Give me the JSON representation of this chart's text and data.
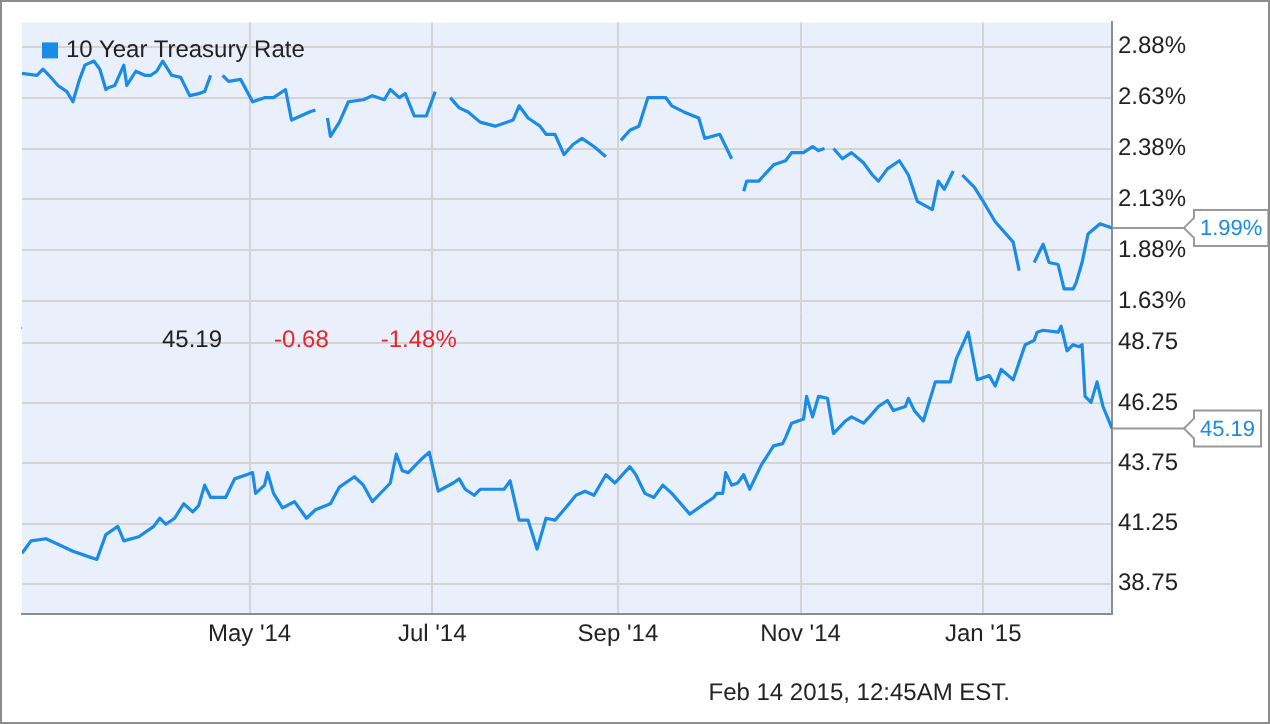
{
  "chart_data": [
    {
      "type": "line",
      "legend": "top left",
      "grid": true,
      "tick_labels": "y",
      "xlim": [
        "2014-02-14",
        "2015-02-13"
      ],
      "xticks": [
        {
          "value": "2014-05-01",
          "label": null
        },
        {
          "value": "2014-07-01",
          "label": null
        },
        {
          "value": "2014-09-01",
          "label": null
        },
        {
          "value": "2014-11-01",
          "label": null
        },
        {
          "value": "2015-01-01",
          "label": null
        }
      ],
      "ylim": [
        1.5,
        3.0
      ],
      "yticks": [
        {
          "value": 1.63,
          "label": "1.63%"
        },
        {
          "value": 1.88,
          "label": "1.88%"
        },
        {
          "value": 2.13,
          "label": "2.13%"
        },
        {
          "value": 2.38,
          "label": "2.38%"
        },
        {
          "value": 2.63,
          "label": "2.63%"
        },
        {
          "value": 2.88,
          "label": "2.88%"
        }
      ],
      "annotations": [
        {
          "text": "1.99%",
          "x": "2015-02-13",
          "y": 1.99
        }
      ],
      "series": [
        {
          "name": "10 Year Treasury Rate",
          "color": "#1a8be6",
          "x": [
            "2014-02-14",
            "2014-02-19",
            "2014-02-21",
            "2014-02-23",
            "2014-02-26",
            "2014-03-01",
            "2014-03-03",
            "2014-03-05",
            "2014-03-07",
            "2014-03-10",
            "2014-03-12",
            "2014-03-14",
            "2014-03-15",
            "2014-03-17",
            "2014-03-20",
            "2014-03-21",
            "2014-03-24",
            "2014-03-27",
            "2014-03-29",
            "2014-03-31",
            "2014-04-02",
            "2014-04-05",
            "2014-04-08",
            "2014-04-11",
            "2014-04-14",
            "2014-04-16",
            "2014-04-18",
            "2014-04-20",
            "2014-04-22",
            "2014-04-24",
            "2014-04-28",
            "2014-05-02",
            "2014-05-06",
            "2014-05-09",
            "2014-05-13",
            "2014-05-15",
            "2014-05-18",
            "2014-05-21",
            "2014-05-23",
            "2014-05-25",
            "2014-05-27",
            "2014-05-28",
            "2014-05-31",
            "2014-06-03",
            "2014-06-08",
            "2014-06-11",
            "2014-06-15",
            "2014-06-17",
            "2014-06-20",
            "2014-06-22",
            "2014-06-25",
            "2014-06-29",
            "2014-07-02",
            "2014-07-05",
            "2014-07-07",
            "2014-07-10",
            "2014-07-13",
            "2014-07-17",
            "2014-07-22",
            "2014-07-28",
            "2014-07-30",
            "2014-08-02",
            "2014-08-06",
            "2014-08-08",
            "2014-08-11",
            "2014-08-14",
            "2014-08-17",
            "2014-08-20",
            "2014-08-24",
            "2014-08-28",
            "2014-08-31",
            "2014-09-02",
            "2014-09-05",
            "2014-09-08",
            "2014-09-11",
            "2014-09-17",
            "2014-09-19",
            "2014-09-23",
            "2014-09-28",
            "2014-09-30",
            "2014-10-05",
            "2014-10-09",
            "2014-10-12",
            "2014-10-13",
            "2014-10-14",
            "2014-10-18",
            "2014-10-23",
            "2014-10-27",
            "2014-10-29",
            "2014-11-02",
            "2014-11-05",
            "2014-11-07",
            "2014-11-09",
            "2014-11-10",
            "2014-11-12",
            "2014-11-15",
            "2014-11-18",
            "2014-11-22",
            "2014-11-25",
            "2014-11-27",
            "2014-11-30",
            "2014-12-04",
            "2014-12-07",
            "2014-12-10",
            "2014-12-15",
            "2014-12-17",
            "2014-12-19",
            "2014-12-22",
            "2014-12-24",
            "2014-12-25",
            "2014-12-29",
            "2015-01-01",
            "2015-01-05",
            "2015-01-11",
            "2015-01-13",
            "2015-01-16",
            "2015-01-18",
            "2015-01-21",
            "2015-01-23",
            "2015-01-26",
            "2015-01-28",
            "2015-01-31",
            "2015-02-01",
            "2015-02-03",
            "2015-02-05",
            "2015-02-09",
            "2015-02-13"
          ],
          "values": [
            2.75,
            2.74,
            2.77,
            2.74,
            2.69,
            2.66,
            2.61,
            2.71,
            2.79,
            2.81,
            2.77,
            2.67,
            2.68,
            2.69,
            2.79,
            2.69,
            2.76,
            2.74,
            2.74,
            2.76,
            2.81,
            2.74,
            2.73,
            2.64,
            2.65,
            2.66,
            2.74,
            null,
            2.74,
            2.71,
            2.72,
            2.61,
            2.63,
            2.63,
            2.67,
            2.52,
            2.54,
            2.56,
            2.57,
            null,
            2.53,
            2.44,
            2.51,
            2.61,
            2.62,
            2.64,
            2.62,
            2.67,
            2.63,
            2.65,
            2.54,
            2.54,
            2.66,
            null,
            2.63,
            2.58,
            2.56,
            2.51,
            2.49,
            2.52,
            2.59,
            2.53,
            2.49,
            2.45,
            2.45,
            2.35,
            2.4,
            2.43,
            2.39,
            2.34,
            null,
            2.42,
            2.47,
            2.49,
            2.63,
            2.63,
            2.59,
            2.56,
            2.53,
            2.43,
            2.45,
            2.33,
            null,
            2.17,
            2.22,
            2.22,
            2.3,
            2.32,
            2.36,
            2.36,
            2.39,
            2.37,
            2.38,
            null,
            2.38,
            2.33,
            2.36,
            2.31,
            2.25,
            2.22,
            2.28,
            2.32,
            2.25,
            2.12,
            2.08,
            2.22,
            2.18,
            2.27,
            null,
            2.25,
            2.19,
            2.12,
            2.02,
            1.92,
            1.78,
            null,
            1.82,
            1.91,
            1.82,
            1.81,
            1.69,
            1.69,
            1.72,
            1.82,
            1.96,
            2.01,
            1.99
          ]
        }
      ]
    },
    {
      "type": "line",
      "grid": true,
      "xlim": [
        "2014-02-14",
        "2015-02-13"
      ],
      "xticks": [
        {
          "value": "2014-05-01",
          "label": "May '14"
        },
        {
          "value": "2014-07-01",
          "label": "Jul '14"
        },
        {
          "value": "2014-09-01",
          "label": "Sep '14"
        },
        {
          "value": "2014-11-01",
          "label": "Nov '14"
        },
        {
          "value": "2015-01-01",
          "label": "Jan '15"
        }
      ],
      "ylim": [
        37.5,
        50
      ],
      "yticks": [
        38.75,
        41.25,
        43.75,
        46.25,
        48.75
      ],
      "annotations": [
        "45.19",
        "-0.68",
        "-1.48%",
        {
          "text": "45.19",
          "x": "2015-02-13",
          "y": 45.19
        },
        "Feb 14 2015, 12:45AM EST."
      ],
      "series": [
        {
          "color": "#1a8be6",
          "x": [
            "2014-02-14",
            "2014-02-17",
            "2014-02-22",
            "2014-02-28",
            "2014-03-03",
            "2014-03-07",
            "2014-03-11",
            "2014-03-14",
            "2014-03-18",
            "2014-03-20",
            "2014-03-25",
            "2014-03-30",
            "2014-04-01",
            "2014-04-03",
            "2014-04-06",
            "2014-04-09",
            "2014-04-12",
            "2014-04-14",
            "2014-04-16",
            "2014-04-18",
            "2014-04-23",
            "2014-04-26",
            "2014-04-30",
            "2014-05-02",
            "2014-05-03",
            "2014-05-06",
            "2014-05-07",
            "2014-05-09",
            "2014-05-12",
            "2014-05-16",
            "2014-05-20",
            "2014-05-23",
            "2014-05-28",
            "2014-05-31",
            "2014-06-05",
            "2014-06-08",
            "2014-06-11",
            "2014-06-15",
            "2014-06-17",
            "2014-06-19",
            "2014-06-21",
            "2014-06-23",
            "2014-06-27",
            "2014-06-30",
            "2014-07-03",
            "2014-07-08",
            "2014-07-10",
            "2014-07-12",
            "2014-07-15",
            "2014-07-17",
            "2014-07-21",
            "2014-07-25",
            "2014-07-27",
            "2014-07-30",
            "2014-08-02",
            "2014-08-05",
            "2014-08-08",
            "2014-08-11",
            "2014-08-14",
            "2014-08-18",
            "2014-08-21",
            "2014-08-24",
            "2014-08-28",
            "2014-08-31",
            "2014-09-05",
            "2014-09-07",
            "2014-09-10",
            "2014-09-13",
            "2014-09-16",
            "2014-09-19",
            "2014-09-25",
            "2014-09-29",
            "2014-10-03",
            "2014-10-04",
            "2014-10-06",
            "2014-10-07",
            "2014-10-09",
            "2014-10-11",
            "2014-10-13",
            "2014-10-15",
            "2014-10-19",
            "2014-10-23",
            "2014-10-26",
            "2014-10-27",
            "2014-10-29",
            "2014-11-02",
            "2014-11-03",
            "2014-11-05",
            "2014-11-07",
            "2014-11-10",
            "2014-11-12",
            "2014-11-16",
            "2014-11-18",
            "2014-11-22",
            "2014-11-24",
            "2014-11-27",
            "2014-11-30",
            "2014-12-02",
            "2014-12-06",
            "2014-12-07",
            "2014-12-09",
            "2014-12-12",
            "2014-12-16",
            "2014-12-17",
            "2014-12-21",
            "2014-12-23",
            "2014-12-27",
            "2014-12-30",
            "2015-01-03",
            "2015-01-05",
            "2015-01-07",
            "2015-01-11",
            "2015-01-15",
            "2015-01-18",
            "2015-01-19",
            "2015-01-21",
            "2015-01-26",
            "2015-01-27",
            "2015-01-29",
            "2015-01-31",
            "2015-02-02",
            "2015-02-03",
            "2015-02-04",
            "2015-02-06",
            "2015-02-08",
            "2015-02-10",
            "2015-02-13"
          ],
          "values": [
            40.02,
            40.53,
            40.62,
            40.28,
            40.1,
            39.93,
            39.76,
            40.79,
            41.13,
            40.53,
            40.7,
            41.13,
            41.47,
            41.22,
            41.47,
            42.07,
            41.73,
            41.99,
            42.84,
            42.33,
            42.33,
            43.1,
            43.27,
            43.36,
            42.5,
            42.84,
            43.36,
            42.5,
            41.9,
            42.16,
            41.47,
            41.82,
            42.07,
            42.76,
            43.19,
            42.84,
            42.16,
            42.67,
            42.93,
            44.13,
            43.44,
            43.36,
            43.87,
            44.21,
            42.59,
            42.93,
            43.1,
            42.67,
            42.42,
            42.67,
            42.67,
            42.67,
            43.02,
            41.39,
            41.39,
            40.19,
            41.47,
            41.39,
            41.82,
            42.42,
            42.59,
            42.42,
            43.27,
            42.93,
            43.61,
            43.27,
            42.5,
            42.33,
            42.84,
            42.5,
            41.64,
            41.99,
            42.33,
            42.5,
            42.5,
            43.36,
            42.84,
            42.93,
            43.27,
            42.67,
            43.7,
            44.47,
            44.56,
            44.81,
            45.41,
            45.58,
            46.52,
            45.67,
            46.52,
            46.44,
            44.98,
            45.5,
            45.67,
            45.41,
            45.67,
            46.1,
            46.35,
            45.93,
            46.1,
            46.44,
            45.93,
            45.5,
            47.12,
            47.12,
            47.12,
            48.07,
            49.18,
            47.21,
            47.38,
            46.95,
            47.64,
            47.21,
            48.66,
            48.84,
            49.18,
            49.26,
            49.18,
            49.43,
            48.41,
            48.66,
            48.58,
            48.66,
            46.52,
            46.27,
            47.12,
            46.1,
            45.19
          ]
        }
      ]
    }
  ]
}
